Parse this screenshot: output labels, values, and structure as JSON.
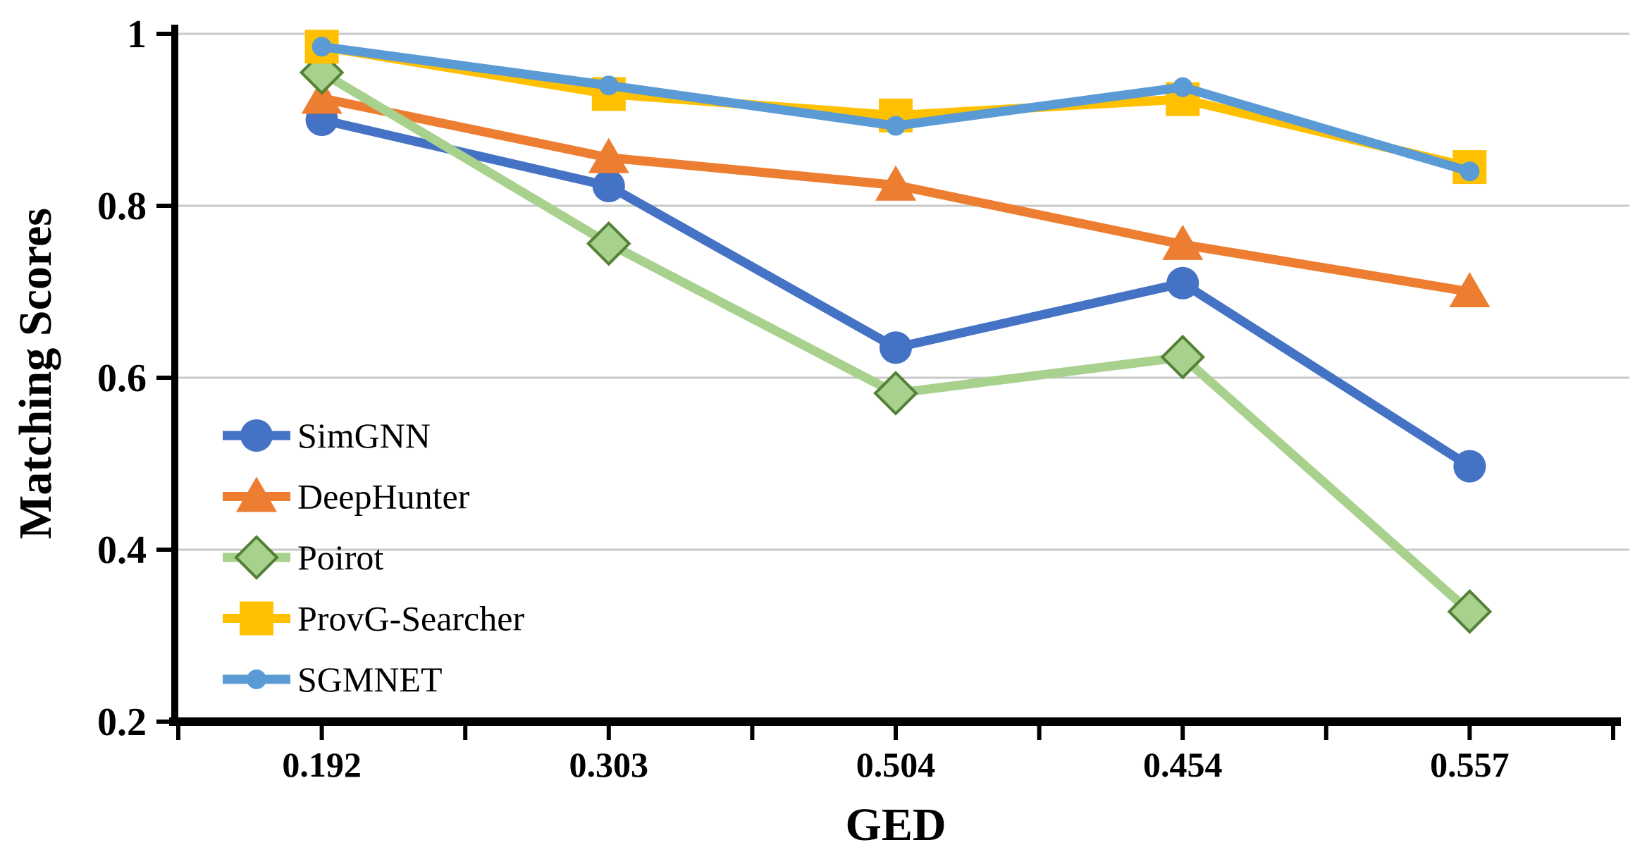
{
  "figure": {
    "background": "#ffffff",
    "axis_color": "#000000",
    "gridline_color": "#c8c8c8"
  },
  "chart_data": {
    "type": "line",
    "title": "",
    "xlabel": "GED",
    "ylabel": "Matching Scores",
    "categories": [
      "0.192",
      "0.303",
      "0.504",
      "0.454",
      "0.557"
    ],
    "ytick_labels": [
      "1",
      "0.8",
      "0.6",
      "0.4",
      "0.2"
    ],
    "yticks": [
      1.0,
      0.8,
      0.6,
      0.4,
      0.2
    ],
    "ylim": [
      0.2,
      1.0
    ],
    "grid": "horizontal-only",
    "legend_position": "inside-left-middle",
    "series": [
      {
        "name": "SimGNN",
        "color": "#4472C4",
        "marker": "circle",
        "marker_fill": "#4472C4",
        "marker_stroke": "none",
        "values": [
          0.9,
          0.823,
          0.635,
          0.71,
          0.497
        ]
      },
      {
        "name": "DeepHunter",
        "color": "#ED7D31",
        "marker": "triangle",
        "marker_fill": "#ED7D31",
        "marker_stroke": "none",
        "values": [
          0.925,
          0.856,
          0.824,
          0.755,
          0.7
        ]
      },
      {
        "name": "Poirot",
        "color": "#A9D18E",
        "marker": "diamond",
        "marker_fill": "#A9D18E",
        "marker_stroke": "#538135",
        "values": [
          0.955,
          0.756,
          0.582,
          0.624,
          0.328
        ]
      },
      {
        "name": "ProvG-Searcher",
        "color": "#FFC000",
        "marker": "square",
        "marker_fill": "#FFC000",
        "marker_stroke": "none",
        "values": [
          0.985,
          0.93,
          0.905,
          0.924,
          0.845
        ]
      },
      {
        "name": "SGMNET",
        "color": "#5B9BD5",
        "marker": "circle-small",
        "marker_fill": "#5B9BD5",
        "marker_stroke": "none",
        "values": [
          0.985,
          0.94,
          0.893,
          0.938,
          0.84
        ]
      }
    ]
  }
}
